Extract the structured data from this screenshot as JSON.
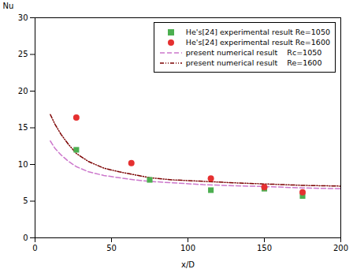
{
  "chart_data": {
    "type": "line",
    "xlabel": "x/D",
    "ylabel": "Nu",
    "xlim": [
      0,
      200
    ],
    "ylim": [
      0,
      30
    ],
    "xticks": [
      0,
      50,
      100,
      150,
      200
    ],
    "yticks": [
      0,
      5,
      10,
      15,
      20,
      25,
      30
    ],
    "legend": "upper right",
    "series": [
      {
        "name": "He's[24] experimental result Re=1050",
        "type": "scatter",
        "marker": "square",
        "color": "#4CAF50",
        "x": [
          27,
          75,
          115,
          150,
          175
        ],
        "values": [
          12.0,
          7.9,
          6.5,
          6.7,
          5.7
        ]
      },
      {
        "name": "He's[24] experimental result Re=1600",
        "type": "scatter",
        "marker": "circle",
        "color": "#E53030",
        "x": [
          27,
          63,
          115,
          150,
          175
        ],
        "values": [
          16.4,
          10.2,
          8.1,
          6.9,
          6.2
        ]
      },
      {
        "name": "present numerical result    Rc=1050",
        "type": "line",
        "line_style": "dashed",
        "color": "#CC77CC",
        "x": [
          10,
          13,
          17,
          22,
          27,
          35,
          45,
          55,
          65,
          75,
          90,
          110,
          130,
          150,
          175,
          200
        ],
        "values": [
          13.2,
          12.2,
          11.3,
          10.4,
          9.7,
          9.0,
          8.5,
          8.2,
          7.9,
          7.7,
          7.5,
          7.25,
          7.1,
          7.0,
          6.8,
          6.7
        ]
      },
      {
        "name": "present numerical result    Re=1600",
        "type": "line",
        "line_style": "dashdotdot",
        "color": "#7B0000",
        "x": [
          10,
          13,
          17,
          22,
          27,
          35,
          45,
          55,
          65,
          75,
          90,
          110,
          130,
          150,
          175,
          200
        ],
        "values": [
          16.8,
          15.5,
          14.1,
          12.7,
          11.5,
          10.4,
          9.5,
          9.0,
          8.6,
          8.2,
          7.9,
          7.7,
          7.5,
          7.35,
          7.15,
          7.05
        ]
      }
    ]
  }
}
